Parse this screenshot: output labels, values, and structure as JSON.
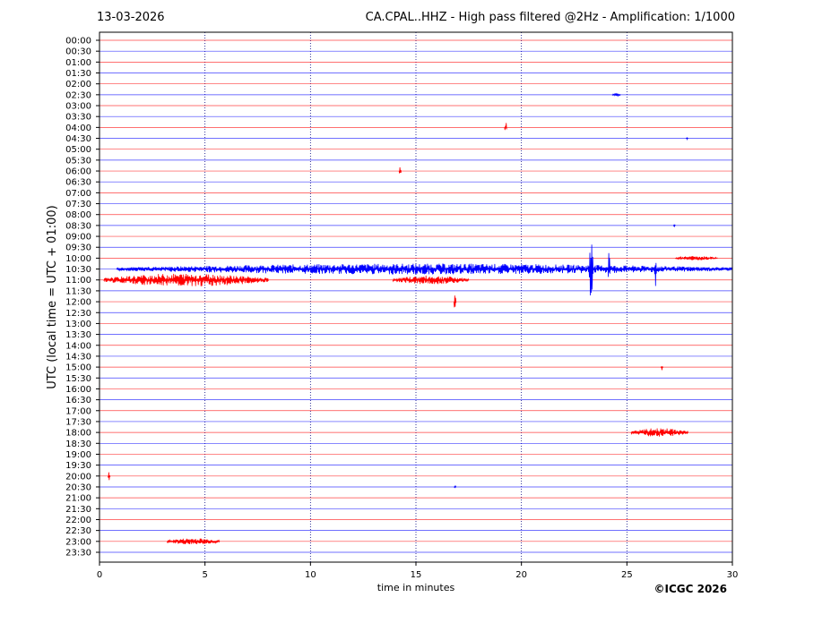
{
  "header": {
    "date": "13-03-2026",
    "title": "CA.CPAL..HHZ - High pass filtered @2Hz - Amplification: 1/1000"
  },
  "footer": {
    "copyright": "©ICGC 2026"
  },
  "chart_data": {
    "type": "line",
    "title": "CA.CPAL..HHZ - High pass filtered @2Hz - Amplification: 1/1000",
    "xlabel": "time in minutes",
    "ylabel": "UTC (local time = UTC + 01:00)",
    "xlim": [
      0,
      30
    ],
    "xticks": [
      0,
      5,
      10,
      15,
      20,
      25,
      30
    ],
    "yticks": [
      "00:00",
      "00:30",
      "01:00",
      "01:30",
      "02:00",
      "02:30",
      "03:00",
      "03:30",
      "04:00",
      "04:30",
      "05:00",
      "05:30",
      "06:00",
      "06:30",
      "07:00",
      "07:30",
      "08:00",
      "08:30",
      "09:00",
      "09:30",
      "10:00",
      "10:30",
      "11:00",
      "11:30",
      "12:00",
      "12:30",
      "13:00",
      "13:30",
      "14:00",
      "14:30",
      "15:00",
      "15:30",
      "16:00",
      "16:30",
      "17:00",
      "17:30",
      "18:00",
      "18:30",
      "19:00",
      "19:30",
      "20:00",
      "20:30",
      "21:00",
      "21:30",
      "22:00",
      "22:30",
      "23:00",
      "23:30"
    ],
    "colors": {
      "even_trace": "#ff0000",
      "odd_trace": "#0000ff",
      "grid": "#000080"
    },
    "grid": "vertical dotted at 5-minute intervals",
    "events": [
      {
        "row": "02:30",
        "start": 24.3,
        "end": 24.7,
        "amp": 0.15
      },
      {
        "row": "04:00",
        "start": 19.2,
        "end": 19.3,
        "amp": 0.6
      },
      {
        "row": "04:30",
        "start": 27.8,
        "end": 27.9,
        "amp": 0.1
      },
      {
        "row": "06:00",
        "start": 14.2,
        "end": 14.3,
        "amp": 0.5
      },
      {
        "row": "08:30",
        "start": 27.2,
        "end": 27.3,
        "amp": 0.15
      },
      {
        "row": "10:00",
        "start": 27.3,
        "end": 29.3,
        "amp": 0.2
      },
      {
        "row": "10:30",
        "start": 0.8,
        "end": 30.0,
        "amp": 0.5
      },
      {
        "row": "10:30",
        "start": 23.2,
        "end": 23.4,
        "amp": 2.8
      },
      {
        "row": "10:30",
        "start": 24.1,
        "end": 24.2,
        "amp": 1.6
      },
      {
        "row": "10:30",
        "start": 26.3,
        "end": 26.4,
        "amp": 1.8
      },
      {
        "row": "11:00",
        "start": 0.2,
        "end": 8.0,
        "amp": 0.6
      },
      {
        "row": "11:00",
        "start": 13.9,
        "end": 17.5,
        "amp": 0.4
      },
      {
        "row": "12:00",
        "start": 16.8,
        "end": 16.9,
        "amp": 0.8
      },
      {
        "row": "15:00",
        "start": 26.6,
        "end": 26.7,
        "amp": 0.3
      },
      {
        "row": "18:00",
        "start": 25.2,
        "end": 27.9,
        "amp": 0.4
      },
      {
        "row": "20:00",
        "start": 0.4,
        "end": 0.5,
        "amp": 0.4
      },
      {
        "row": "20:30",
        "start": 16.8,
        "end": 16.9,
        "amp": 0.15
      },
      {
        "row": "23:00",
        "start": 3.2,
        "end": 5.7,
        "amp": 0.3
      }
    ]
  }
}
